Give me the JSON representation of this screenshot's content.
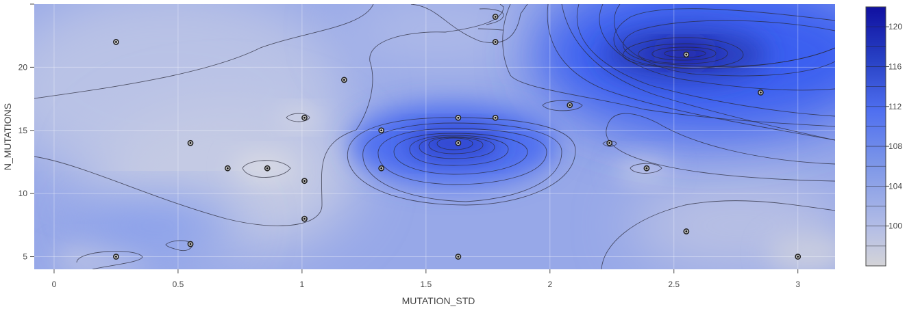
{
  "chart_data": {
    "type": "contour",
    "title": "",
    "xlabel": "MUTATION_STD",
    "ylabel": "N_MUTATIONS",
    "xlim": [
      -0.08,
      3.15
    ],
    "ylim": [
      4.0,
      25.0
    ],
    "x_ticks": [
      {
        "value": 0,
        "label": "0"
      },
      {
        "value": 0.5,
        "label": "0.5"
      },
      {
        "value": 1,
        "label": "1"
      },
      {
        "value": 1.5,
        "label": "1.5"
      },
      {
        "value": 2,
        "label": "2"
      },
      {
        "value": 2.5,
        "label": "2.5"
      },
      {
        "value": 3,
        "label": "3"
      }
    ],
    "y_ticks": [
      {
        "value": 5,
        "label": "5"
      },
      {
        "value": 10,
        "label": "10"
      },
      {
        "value": 15,
        "label": "15"
      },
      {
        "value": 20,
        "label": "20"
      }
    ],
    "colorbar": {
      "range": [
        96,
        122
      ],
      "ticks": [
        {
          "value": 100,
          "label": "100"
        },
        {
          "value": 104,
          "label": "104"
        },
        {
          "value": 108,
          "label": "108"
        },
        {
          "value": 112,
          "label": "112"
        },
        {
          "value": 116,
          "label": "116"
        },
        {
          "value": 120,
          "label": "120"
        }
      ],
      "colors": [
        "#d4d4d8",
        "#1010a0"
      ]
    },
    "points": [
      {
        "x": 0.25,
        "y": 22
      },
      {
        "x": 0.55,
        "y": 14
      },
      {
        "x": 0.7,
        "y": 12
      },
      {
        "x": 0.86,
        "y": 12
      },
      {
        "x": 1.01,
        "y": 16
      },
      {
        "x": 1.01,
        "y": 11
      },
      {
        "x": 1.01,
        "y": 8
      },
      {
        "x": 1.17,
        "y": 19
      },
      {
        "x": 1.32,
        "y": 15
      },
      {
        "x": 1.32,
        "y": 12
      },
      {
        "x": 1.63,
        "y": 16
      },
      {
        "x": 1.63,
        "y": 14
      },
      {
        "x": 1.63,
        "y": 5
      },
      {
        "x": 1.78,
        "y": 24
      },
      {
        "x": 1.78,
        "y": 22
      },
      {
        "x": 1.78,
        "y": 16
      },
      {
        "x": 2.08,
        "y": 17
      },
      {
        "x": 2.24,
        "y": 14
      },
      {
        "x": 2.39,
        "y": 12
      },
      {
        "x": 2.55,
        "y": 21
      },
      {
        "x": 2.55,
        "y": 7
      },
      {
        "x": 2.85,
        "y": 18
      },
      {
        "x": 3.0,
        "y": 5
      },
      {
        "x": 0.25,
        "y": 5
      },
      {
        "x": 0.55,
        "y": 6
      }
    ]
  }
}
